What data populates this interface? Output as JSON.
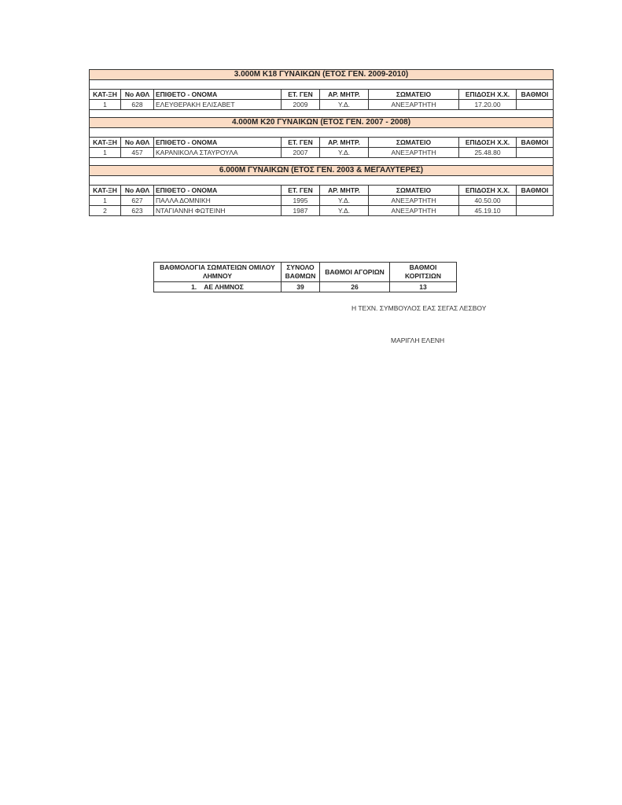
{
  "columns": [
    "ΚΑΤ-ΞΗ",
    "Νο ΑΘΛ",
    "ΕΠΙΘΕΤΟ - ΟΝΟΜΑ",
    "ΕΤ. ΓΕΝ",
    "ΑΡ. ΜΗΤΡ.",
    "ΣΩΜΑΤΕΙΟ",
    "ΕΠΙΔΟΣΗ  Χ.Χ.",
    "ΒΑΘΜΟΙ"
  ],
  "events": [
    {
      "title": "3.000Μ Κ18 ΓΥΝΑΙΚΩΝ (ΕΤΟΣ ΓΕΝ. 2009-2010)",
      "rows": [
        [
          "1",
          "628",
          "ΕΛΕΥΘΕΡΑΚΗ ΕΛΙΣΑΒΕΤ",
          "2009",
          "Υ.Δ.",
          "ΑΝΕΞΑΡΤΗΤΗ",
          "17.20.00",
          ""
        ]
      ]
    },
    {
      "title": "4.000Μ  Κ20 ΓΥΝΑΙΚΩΝ (ΕΤΟΣ ΓΕΝ. 2007 - 2008)",
      "rows": [
        [
          "1",
          "457",
          "ΚΑΡΑΝΙΚΟΛΑ ΣΤΑΥΡΟΥΛΑ",
          "2007",
          "Υ.Δ.",
          "ΑΝΕΞΑΡΤΗΤΗ",
          "25.48.80",
          ""
        ]
      ]
    },
    {
      "title": "6.000Μ  ΓΥΝΑΙΚΩΝ (ΕΤΟΣ ΓΕΝ. 2003 & ΜΕΓΑΛΥΤΕΡΕΣ)",
      "rows": [
        [
          "1",
          "627",
          "ΠΑΛΛΑ ΔΟΜΝΙΚΗ",
          "1995",
          "Υ.Δ.",
          "ΑΝΕΞΑΡΤΗΤΗ",
          "40.50.00",
          ""
        ],
        [
          "2",
          "623",
          "ΝΤΑΓΙΑΝΝΗ ΦΩΤΕΙΝΗ",
          "1987",
          "Υ.Δ.",
          "ΑΝΕΞΑΡΤΗΤΗ",
          "45.19.10",
          ""
        ]
      ]
    }
  ],
  "summary": {
    "headers": [
      "ΒΑΘΜΟΛΟΓΙΑ ΣΩΜΑΤΕΙΩΝ ΟΜΙΛΟΥ ΛΗΜΝΟΥ",
      "ΣΥΝΟΛΟ ΒΑΘΜΩΝ",
      "ΒΑΘΜΟΙ ΑΓΟΡΙΩΝ",
      "ΒΑΘΜΟΙ ΚΟΡΙΤΣΙΩΝ"
    ],
    "rows": [
      [
        "1.    ΑΕ ΛΗΜΝΟΣ",
        "39",
        "26",
        "13"
      ]
    ]
  },
  "signature": {
    "role": "Η ΤΕΧΝ. ΣΥΜΒΟΥΛΟΣ ΕΑΣ ΣΕΓΑΣ ΛΕΣΒΟΥ",
    "name": "ΜΑΡΙΓΛΗ ΕΛΕΝΗ"
  }
}
